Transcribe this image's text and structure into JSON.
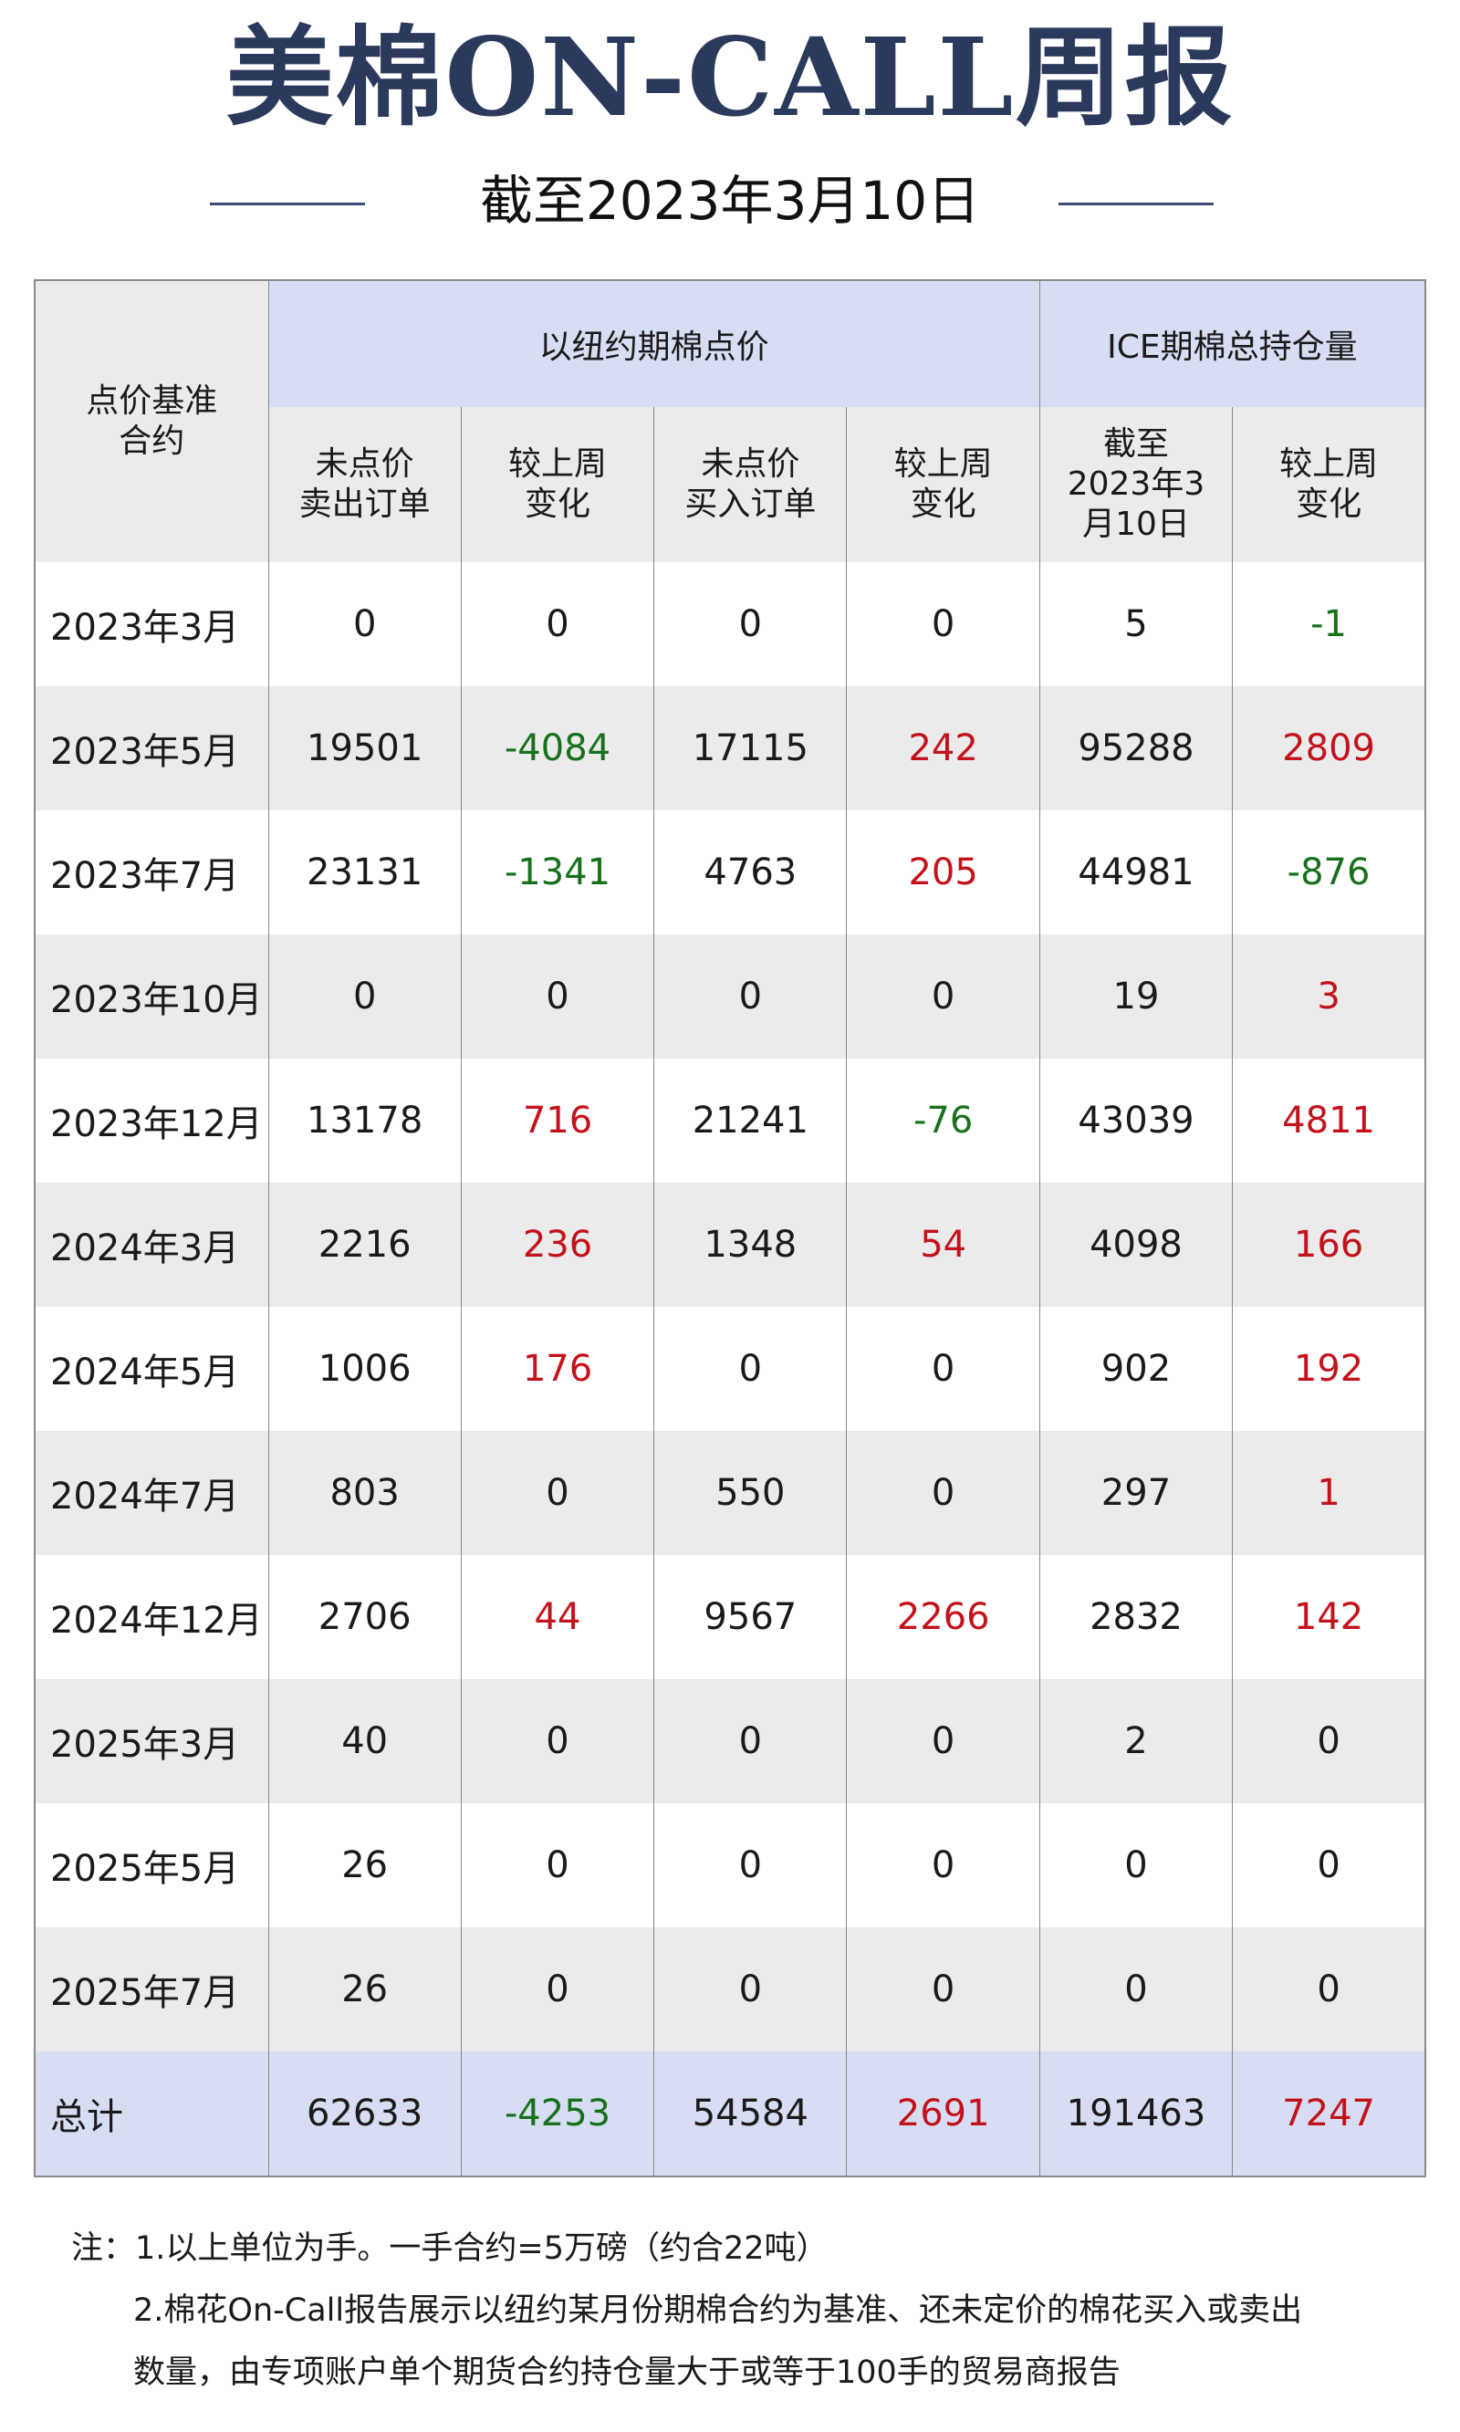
{
  "header": {
    "title": "美棉ON-CALL周报",
    "subtitle": "截至2023年3月10日"
  },
  "table": {
    "corner": "点价基准\n合约",
    "groups": [
      "以纽约期棉点价",
      "ICE期棉总持仓量"
    ],
    "columns": [
      "未点价\n卖出订单",
      "较上周\n变化",
      "未点价\n买入订单",
      "较上周\n变化",
      "截至\n2023年3\n月10日",
      "较上周\n变化"
    ],
    "rows": [
      [
        "2023年3月",
        0,
        0,
        0,
        0,
        5,
        -1
      ],
      [
        "2023年5月",
        19501,
        -4084,
        17115,
        242,
        95288,
        2809
      ],
      [
        "2023年7月",
        23131,
        -1341,
        4763,
        205,
        44981,
        -876
      ],
      [
        "2023年10月",
        0,
        0,
        0,
        0,
        19,
        3
      ],
      [
        "2023年12月",
        13178,
        716,
        21241,
        -76,
        43039,
        4811
      ],
      [
        "2024年3月",
        2216,
        236,
        1348,
        54,
        4098,
        166
      ],
      [
        "2024年5月",
        1006,
        176,
        0,
        0,
        902,
        192
      ],
      [
        "2024年7月",
        803,
        0,
        550,
        0,
        297,
        1
      ],
      [
        "2024年12月",
        2706,
        44,
        9567,
        2266,
        2832,
        142
      ],
      [
        "2025年3月",
        40,
        0,
        0,
        0,
        2,
        0
      ],
      [
        "2025年5月",
        26,
        0,
        0,
        0,
        0,
        0
      ],
      [
        "2025年7月",
        26,
        0,
        0,
        0,
        0,
        0
      ]
    ],
    "total": [
      "总计",
      62633,
      -4253,
      54584,
      2691,
      191463,
      7247
    ]
  },
  "notes": [
    "注：1.以上单位为手。一手合约=5万磅（约合22吨）",
    "2.棉花On-Call报告展示以纽约某月份期棉合约为基准、还未定价的棉花买入或卖出数量，由专项账户单个期货合约持仓量大于或等于100手的贸易商报告"
  ]
}
